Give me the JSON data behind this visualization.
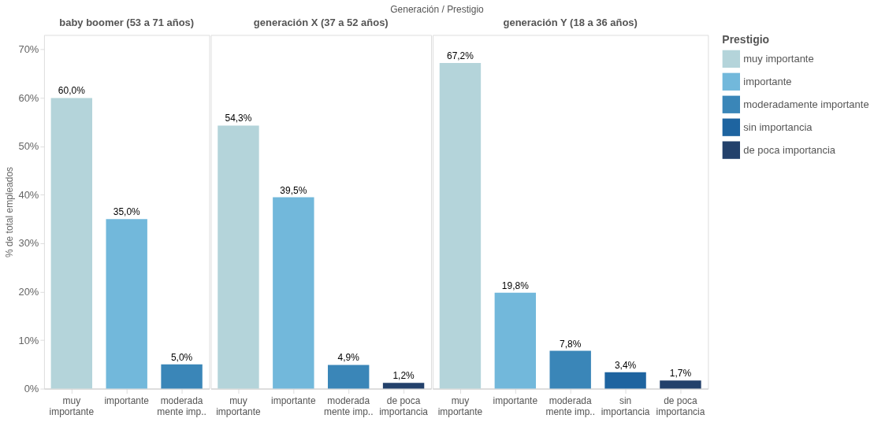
{
  "chart_data": [
    {
      "type": "bar",
      "title": "baby boomer (53 a 71 años)",
      "ylabel": "% de total empleados",
      "annotations": [
        "Generación  /  Prestigio"
      ],
      "categories": [
        "muy importante",
        "importante",
        "moderada mente imp.."
      ],
      "values": [
        60.0,
        35.0,
        5.0
      ],
      "colors": [
        "#b4d4da",
        "#72b8db",
        "#3a86b8"
      ],
      "value_labels": [
        "60,0%",
        "35,0%",
        "5,0%"
      ],
      "ylim": [
        0,
        73
      ],
      "yticks": [
        {
          "value": 0,
          "label": "0%"
        },
        {
          "value": 10,
          "label": "10%"
        },
        {
          "value": 20,
          "label": "20%"
        },
        {
          "value": 30,
          "label": "30%"
        },
        {
          "value": 40,
          "label": "40%"
        },
        {
          "value": 50,
          "label": "50%"
        },
        {
          "value": 60,
          "label": "60%"
        },
        {
          "value": 70,
          "label": "70%"
        }
      ],
      "grid": false
    },
    {
      "type": "bar",
      "title": "generación X (37 a 52 años)",
      "categories": [
        "muy importante",
        "importante",
        "moderada mente imp..",
        "de poca importancia"
      ],
      "values": [
        54.3,
        39.5,
        4.9,
        1.2
      ],
      "colors": [
        "#b4d4da",
        "#72b8db",
        "#3a86b8",
        "#23416b"
      ],
      "value_labels": [
        "54,3%",
        "39,5%",
        "4,9%",
        "1,2%"
      ],
      "ylim": [
        0,
        73
      ],
      "tick_labels": "x",
      "grid": false
    },
    {
      "type": "bar",
      "title": "generación Y (18 a 36 años)",
      "legend_title": "Prestigio",
      "categories": [
        "muy importante",
        "importante",
        "moderada mente imp..",
        "sin importancia",
        "de poca importancia"
      ],
      "series": [
        {
          "name": "muy importante",
          "color": "#b4d4da",
          "values": [
            67.2,
            null,
            null,
            null,
            null
          ]
        },
        {
          "name": "importante",
          "color": "#72b8db",
          "values": [
            null,
            19.8,
            null,
            null,
            null
          ]
        },
        {
          "name": "moderadamente importante",
          "color": "#3a86b8",
          "values": [
            null,
            null,
            7.8,
            null,
            null
          ]
        },
        {
          "name": "sin importancia",
          "color": "#1e64a0",
          "values": [
            null,
            null,
            null,
            3.4,
            null
          ]
        },
        {
          "name": "de poca importancia",
          "color": "#23416b",
          "values": [
            null,
            null,
            null,
            null,
            1.7
          ]
        }
      ],
      "value_labels": [
        "67,2%",
        "19,8%",
        "7,8%",
        "3,4%",
        "1,7%"
      ],
      "ylim": [
        0,
        73
      ],
      "tick_labels": "x",
      "grid": false,
      "legend": "right"
    }
  ]
}
